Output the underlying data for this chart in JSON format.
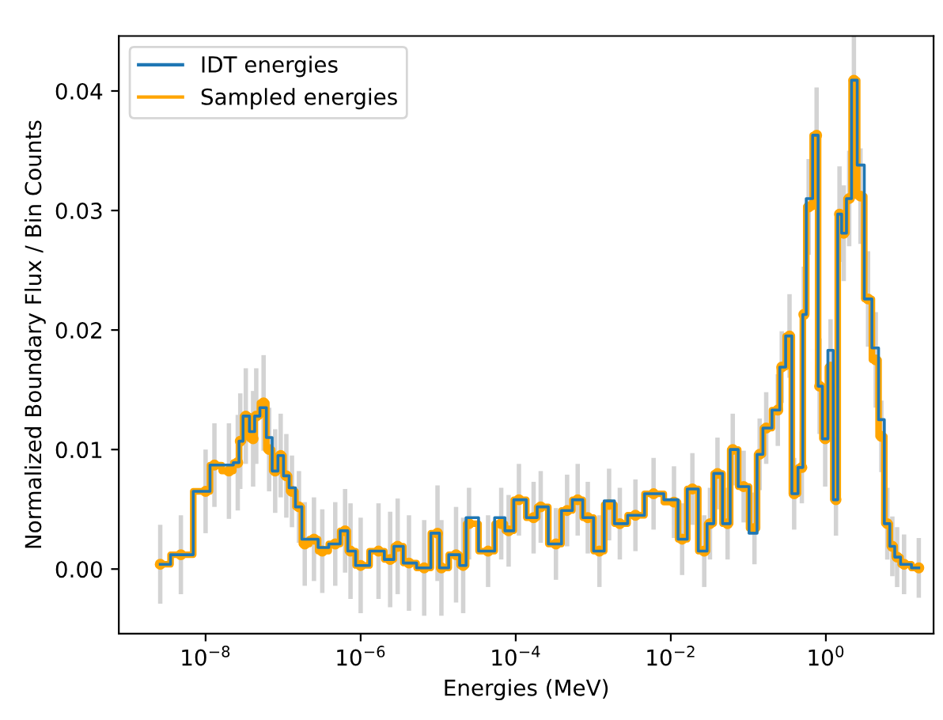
{
  "chart_data": {
    "type": "step",
    "xlabel": "Energies (MeV)",
    "ylabel": "Normalized Boundary Flux / Bin Counts",
    "log": "x",
    "grid": false,
    "legend": "top left",
    "xlim": [
      7.6e-10,
      24.5
    ],
    "ylim": [
      -0.0054,
      0.0446
    ],
    "xticks": [
      {
        "value": 1e-08,
        "label": "10$^{−8}$"
      },
      {
        "value": 1e-06,
        "label": "10$^{−6}$"
      },
      {
        "value": 0.0001,
        "label": "10$^{−4}$"
      },
      {
        "value": 0.01,
        "label": "10$^{−2}$"
      },
      {
        "value": 1,
        "label": "10$^{0}$"
      }
    ],
    "yticks": [
      {
        "value": 0,
        "label": "0.00"
      },
      {
        "value": 0.01,
        "label": "0.01"
      },
      {
        "value": 0.02,
        "label": "0.02"
      },
      {
        "value": 0.03,
        "label": "0.03"
      },
      {
        "value": 0.04,
        "label": "0.04"
      }
    ],
    "x": [
      2.6e-09,
      4.8e-09,
      1e-08,
      1.3e-08,
      2e-08,
      2.6e-08,
      2.8e-08,
      3.3e-08,
      4.1e-08,
      4.5e-08,
      5.6e-08,
      6.6e-08,
      7.9e-08,
      9.3e-08,
      1.1e-07,
      1.3e-07,
      1.6e-07,
      1.9e-07,
      2.5e-07,
      3.2e-07,
      4.7e-07,
      6.3e-07,
      7.4e-07,
      1e-06,
      1.7e-06,
      2.4e-06,
      3e-06,
      4.2e-06,
      6.6e-06,
      9.8e-06,
      1.1e-05,
      1.7e-05,
      2.1e-05,
      2.5e-05,
      4.4e-05,
      6.5e-05,
      8.1e-05,
      0.00011,
      0.00017,
      0.00021,
      0.00033,
      0.00046,
      0.00063,
      0.00085,
      0.0012,
      0.0016,
      0.0022,
      0.0035,
      0.006,
      0.011,
      0.014,
      0.019,
      0.027,
      0.032,
      0.04,
      0.054,
      0.063,
      0.087,
      0.12,
      0.14,
      0.17,
      0.24,
      0.27,
      0.34,
      0.39,
      0.49,
      0.52,
      0.6,
      0.76,
      0.83,
      0.98,
      1.15,
      1.35,
      1.5,
      1.7,
      2.0,
      2.3,
      2.8,
      3.5,
      4.4,
      5.2,
      6.2,
      7.2,
      8.3,
      10.2,
      15.8
    ],
    "series": [
      {
        "name": "IDT energies",
        "color": "#1f77b4",
        "marker": "none",
        "values": [
          0.0004,
          0.0012,
          0.0065,
          0.0087,
          0.0087,
          0.0089,
          0.0107,
          0.0128,
          0.0115,
          0.0128,
          0.0135,
          0.011,
          0.0082,
          0.0095,
          0.0078,
          0.0068,
          0.0052,
          0.0025,
          0.0025,
          0.0018,
          0.0021,
          0.0032,
          0.0015,
          0.0003,
          0.0015,
          0.0008,
          0.0019,
          0.0005,
          0.0001,
          0.003,
          0.0001,
          0.0012,
          0.0003,
          0.0043,
          0.0015,
          0.0043,
          0.0032,
          0.0058,
          0.0043,
          0.0052,
          0.0021,
          0.0049,
          0.0058,
          0.0043,
          0.0015,
          0.0057,
          0.0038,
          0.0045,
          0.0063,
          0.0058,
          0.0025,
          0.0067,
          0.0015,
          0.0038,
          0.008,
          0.0038,
          0.01,
          0.0069,
          0.003,
          0.0096,
          0.0118,
          0.0133,
          0.0169,
          0.0195,
          0.0063,
          0.0085,
          0.0213,
          0.031,
          0.0363,
          0.0153,
          0.0109,
          0.0183,
          0.0058,
          0.0297,
          0.0281,
          0.031,
          0.0409,
          0.0338,
          0.0226,
          0.0185,
          0.0125,
          0.0038,
          0.0019,
          0.001,
          0.0004,
          0.0001
        ]
      },
      {
        "name": "Sampled energies",
        "color": "#ffa500",
        "marker": "circle",
        "values": [
          0.0004,
          0.0012,
          0.0065,
          0.0087,
          0.0082,
          0.0089,
          0.0107,
          0.0128,
          0.0109,
          0.0128,
          0.0139,
          0.01,
          0.0082,
          0.0095,
          0.0078,
          0.0065,
          0.0052,
          0.0021,
          0.0025,
          0.0015,
          0.0021,
          0.0032,
          0.0015,
          0.0003,
          0.0015,
          0.0008,
          0.0019,
          0.0005,
          0.0001,
          0.003,
          0.0001,
          0.0012,
          0.0003,
          0.0038,
          0.0015,
          0.0038,
          0.0032,
          0.0058,
          0.0043,
          0.0052,
          0.0021,
          0.0049,
          0.0058,
          0.0043,
          0.0015,
          0.0054,
          0.0038,
          0.0045,
          0.0063,
          0.0056,
          0.0025,
          0.0067,
          0.0015,
          0.0038,
          0.008,
          0.0038,
          0.01,
          0.0069,
          0.0034,
          0.0096,
          0.0118,
          0.0133,
          0.0169,
          0.0195,
          0.0063,
          0.0085,
          0.0213,
          0.0303,
          0.0363,
          0.0153,
          0.0109,
          0.0169,
          0.0058,
          0.0297,
          0.0281,
          0.031,
          0.0409,
          0.0312,
          0.0226,
          0.0175,
          0.0111,
          0.0038,
          0.0019,
          0.001,
          0.0004,
          0.0001
        ],
        "errors": [
          0.0033,
          0.0033,
          0.0035,
          0.0035,
          0.004,
          0.004,
          0.004,
          0.004,
          0.004,
          0.004,
          0.004,
          0.0035,
          0.0035,
          0.0035,
          0.0035,
          0.003,
          0.003,
          0.0035,
          0.0035,
          0.0035,
          0.0035,
          0.0035,
          0.004,
          0.004,
          0.004,
          0.004,
          0.004,
          0.004,
          0.004,
          0.004,
          0.004,
          0.004,
          0.004,
          0.003,
          0.003,
          0.003,
          0.003,
          0.003,
          0.003,
          0.003,
          0.003,
          0.003,
          0.003,
          0.003,
          0.003,
          0.003,
          0.003,
          0.003,
          0.003,
          0.003,
          0.003,
          0.003,
          0.003,
          0.003,
          0.003,
          0.003,
          0.003,
          0.003,
          0.003,
          0.003,
          0.003,
          0.003,
          0.003,
          0.0035,
          0.003,
          0.003,
          0.004,
          0.004,
          0.004,
          0.004,
          0.004,
          0.004,
          0.003,
          0.004,
          0.004,
          0.004,
          0.004,
          0.004,
          0.004,
          0.004,
          0.003,
          0.003,
          0.0025,
          0.0025,
          0.0025,
          0.0025
        ]
      }
    ]
  }
}
